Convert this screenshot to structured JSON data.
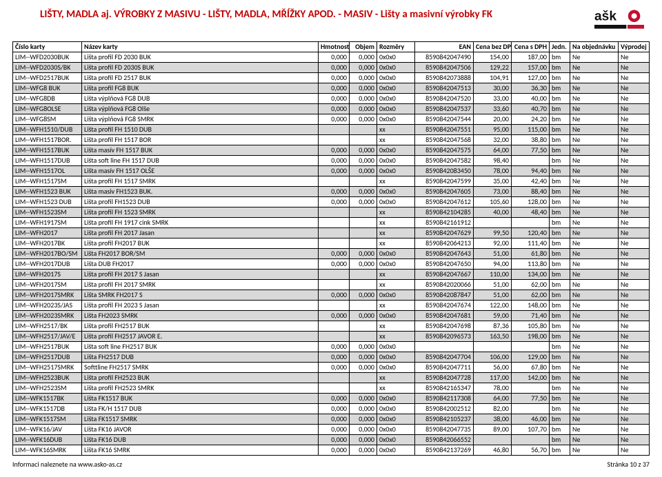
{
  "title": "LIŠTY, MADLA aj. VÝROBKY Z MASIVU - LIŠTY, MADLA, MŘÍŽKY APOD. - MASIV - Lišty a masivní výrobky FK",
  "logo": {
    "text_top": "aško",
    "accent": "#c4112f",
    "black": "#111"
  },
  "columns": [
    "Číslo karty",
    "Název karty",
    "Hmotnost",
    "Objem",
    "Rozměry",
    "EAN",
    "Cena bez DPH",
    "Cena s DPH",
    "Jedn.",
    "Na objednávku",
    "Výprodej"
  ],
  "footer_left": "Informaci naleznete na www.asko-as.cz",
  "footer_right": "Stránka 10 z 37",
  "rows": [
    {
      "g": 0,
      "c": "LIM--WFD2030BUK",
      "n": "Lišta profil FD 2030 BUK",
      "h": "0,000",
      "o": "0,000",
      "r": "0x0x0",
      "e": "8590842047490",
      "b": "154,00",
      "s": "187,00",
      "u": "bm",
      "obj": "Ne",
      "v": "Ne"
    },
    {
      "g": 1,
      "c": "LIM--WFD2030S/BK",
      "n": "Lišta profil FD 2030S BUK",
      "h": "0,000",
      "o": "0,000",
      "r": "0x0x0",
      "e": "8590842047506",
      "b": "129,22",
      "s": "157,00",
      "u": "bm",
      "obj": "Ne",
      "v": "Ne"
    },
    {
      "g": 0,
      "c": "LIM--WFD2517BUK",
      "n": "Lišta profil FD 2517 BUK",
      "h": "0,000",
      "o": "0,000",
      "r": "0x0x0",
      "e": "8590842073888",
      "b": "104,91",
      "s": "127,00",
      "u": "bm",
      "obj": "Ne",
      "v": "Ne"
    },
    {
      "g": 1,
      "c": "LIM--WFG8 BUK",
      "n": "Lišta profil FG8 BUK",
      "h": "0,000",
      "o": "0,000",
      "r": "0x0x0",
      "e": "8590842047513",
      "b": "30,00",
      "s": "36,30",
      "u": "bm",
      "obj": "Ne",
      "v": "Ne"
    },
    {
      "g": 0,
      "c": "LIM--WFG8DB",
      "n": "Lišta výplňová FG8 DUB",
      "h": "0,000",
      "o": "0,000",
      "r": "0x0x0",
      "e": "8590842047520",
      "b": "33,00",
      "s": "40,00",
      "u": "bm",
      "obj": "Ne",
      "v": "Ne"
    },
    {
      "g": 1,
      "c": "LIM--WFG8OLSE",
      "n": "Lišta výplňová FG8 Olše",
      "h": "0,000",
      "o": "0,000",
      "r": "0x0x0",
      "e": "8590842047537",
      "b": "33,60",
      "s": "40,70",
      "u": "bm",
      "obj": "Ne",
      "v": "Ne"
    },
    {
      "g": 0,
      "c": "LIM--WFG8SM",
      "n": "Lišta výplňová FG8 SMRK",
      "h": "0,000",
      "o": "0,000",
      "r": "0x0x0",
      "e": "8590842047544",
      "b": "20,00",
      "s": "24,20",
      "u": "bm",
      "obj": "Ne",
      "v": "Ne"
    },
    {
      "g": 1,
      "c": "LIM--WFH1510/DUB",
      "n": "Lišta profil FH 1510 DUB",
      "h": "",
      "o": "",
      "r": "xx",
      "e": "8590842047551",
      "b": "95,00",
      "s": "115,00",
      "u": "bm",
      "obj": "Ne",
      "v": "Ne"
    },
    {
      "g": 0,
      "c": "LIM--WFH1517BOR.",
      "n": "Lišta profil FH 1517 BOR",
      "h": "",
      "o": "",
      "r": "xx",
      "e": "8590842047568",
      "b": "32,00",
      "s": "38,80",
      "u": "bm",
      "obj": "Ne",
      "v": "Ne"
    },
    {
      "g": 1,
      "c": "LIM--WFH1517BUK",
      "n": "Lišta masív FH 1517 BUK",
      "h": "0,000",
      "o": "0,000",
      "r": "0x0x0",
      "e": "8590842047575",
      "b": "64,00",
      "s": "77,50",
      "u": "bm",
      "obj": "Ne",
      "v": "Ne"
    },
    {
      "g": 0,
      "c": "LIM--WFH1517DUB",
      "n": "Lišta soft line FH 1517 DUB",
      "h": "0,000",
      "o": "0,000",
      "r": "0x0x0",
      "e": "8590842047582",
      "b": "98,40",
      "s": "",
      "u": "bm",
      "obj": "Ne",
      "v": "Ne"
    },
    {
      "g": 1,
      "c": "LIM--WFH1517OL",
      "n": "Lišta masív FH 1517 OLŠE",
      "h": "0,000",
      "o": "0,000",
      "r": "0x0x0",
      "e": "8590842083450",
      "b": "78,00",
      "s": "94,40",
      "u": "bm",
      "obj": "Ne",
      "v": "Ne"
    },
    {
      "g": 0,
      "c": "LIM--WFH1517SM",
      "n": "Lišta profil FH 1517 SMRK",
      "h": "",
      "o": "",
      "r": "xx",
      "e": "8590842047599",
      "b": "35,00",
      "s": "42,40",
      "u": "bm",
      "obj": "Ne",
      "v": "Ne"
    },
    {
      "g": 1,
      "c": "LIM--WFH1523 BUK",
      "n": "Lišta masiv FH1523 BUK.",
      "h": "0,000",
      "o": "0,000",
      "r": "0x0x0",
      "e": "8590842047605",
      "b": "73,00",
      "s": "88,40",
      "u": "bm",
      "obj": "Ne",
      "v": "Ne"
    },
    {
      "g": 0,
      "c": "LIM--WFH1523 DUB",
      "n": "Lišta profil FH1523 DUB",
      "h": "0,000",
      "o": "0,000",
      "r": "0x0x0",
      "e": "8590842047612",
      "b": "105,60",
      "s": "128,00",
      "u": "bm",
      "obj": "Ne",
      "v": "Ne"
    },
    {
      "g": 1,
      "c": "LIM--WFH1523SM",
      "n": "Lišta profil FH 1523 SMRK",
      "h": "",
      "o": "",
      "r": "xx",
      "e": "8590842104285",
      "b": "40,00",
      "s": "48,40",
      "u": "bm",
      "obj": "Ne",
      "v": "Ne"
    },
    {
      "g": 0,
      "c": "LIM--WFH1917SM",
      "n": "Lišta profil FH 1917 cink SMRK",
      "h": "",
      "o": "",
      "r": "xx",
      "e": "8590842161912",
      "b": "",
      "s": "",
      "u": "bm",
      "obj": "Ne",
      "v": "Ne"
    },
    {
      "g": 1,
      "c": "LIM--WFH2017",
      "n": "Lišta profil FH 2017 Jasan",
      "h": "",
      "o": "",
      "r": "xx",
      "e": "8590842047629",
      "b": "99,50",
      "s": "120,40",
      "u": "bm",
      "obj": "Ne",
      "v": "Ne"
    },
    {
      "g": 0,
      "c": "LIM--WFH2017BK",
      "n": "Lišta profil FH2017 BUK",
      "h": "",
      "o": "",
      "r": "xx",
      "e": "8590842064213",
      "b": "92,00",
      "s": "111,40",
      "u": "bm",
      "obj": "Ne",
      "v": "Ne"
    },
    {
      "g": 1,
      "c": "LIM--WFH2017BO/SM",
      "n": "Lišta FH2017 BOR/SM",
      "h": "0,000",
      "o": "0,000",
      "r": "0x0x0",
      "e": "8590842047643",
      "b": "51,00",
      "s": "61,80",
      "u": "bm",
      "obj": "Ne",
      "v": "Ne"
    },
    {
      "g": 0,
      "c": "LIM--WFH2017DUB",
      "n": "Lišta DUB FH2017",
      "h": "0,000",
      "o": "0,000",
      "r": "0x0x0",
      "e": "8590842047650",
      "b": "94,00",
      "s": "113,80",
      "u": "bm",
      "obj": "Ne",
      "v": "Ne"
    },
    {
      "g": 1,
      "c": "LIM--WFH2017S",
      "n": "Lišta profil FH 2017 S Jasan",
      "h": "",
      "o": "",
      "r": "xx",
      "e": "8590842047667",
      "b": "110,00",
      "s": "134,00",
      "u": "bm",
      "obj": "Ne",
      "v": "Ne"
    },
    {
      "g": 0,
      "c": "LIM--WFH2017SM",
      "n": "Lišta profil FH 2017 SMRK",
      "h": "",
      "o": "",
      "r": "xx",
      "e": "8590842020066",
      "b": "51,00",
      "s": "62,00",
      "u": "bm",
      "obj": "Ne",
      "v": "Ne"
    },
    {
      "g": 1,
      "c": "LIM--WFH2017SMRK",
      "n": "Lišta SMRK FH2017 S",
      "h": "0,000",
      "o": "0,000",
      "r": "0x0x0",
      "e": "8590842087847",
      "b": "51,00",
      "s": "62,00",
      "u": "bm",
      "obj": "Ne",
      "v": "Ne"
    },
    {
      "g": 0,
      "c": "LIM--WFH2023S/JAS",
      "n": "Lišta profil FH 2023 S Jasan",
      "h": "",
      "o": "",
      "r": "xx",
      "e": "8590842047674",
      "b": "122,00",
      "s": "148,00",
      "u": "bm",
      "obj": "Ne",
      "v": "Ne"
    },
    {
      "g": 1,
      "c": "LIM--WFH2023SMRK",
      "n": "Lišta FH2023 SMRK",
      "h": "0,000",
      "o": "0,000",
      "r": "0x0x0",
      "e": "8590842047681",
      "b": "59,00",
      "s": "71,40",
      "u": "bm",
      "obj": "Ne",
      "v": "Ne"
    },
    {
      "g": 0,
      "c": "LIM--WFH2517/BK",
      "n": "Lišta profil FH2517 BUK",
      "h": "",
      "o": "",
      "r": "xx",
      "e": "8590842047698",
      "b": "87,36",
      "s": "105,80",
      "u": "bm",
      "obj": "Ne",
      "v": "Ne"
    },
    {
      "g": 1,
      "c": "LIM--WFH2517/JAV/E",
      "n": "Lišta profil FH2517 JAVOR E.",
      "h": "",
      "o": "",
      "r": "xx",
      "e": "8590842096573",
      "b": "163,50",
      "s": "198,00",
      "u": "bm",
      "obj": "Ne",
      "v": "Ne"
    },
    {
      "g": 0,
      "c": "LIM--WFH2517BUK",
      "n": "Lišta soft line  FH2517 BUK",
      "h": "0,000",
      "o": "0,000",
      "r": "0x0x0",
      "e": "",
      "b": "",
      "s": "",
      "u": "bm",
      "obj": "Ne",
      "v": "Ne"
    },
    {
      "g": 1,
      "c": "LIM--WFH2517DUB",
      "n": "Lišta FH2517 DUB",
      "h": "0,000",
      "o": "0,000",
      "r": "0x0x0",
      "e": "8590842047704",
      "b": "106,00",
      "s": "129,00",
      "u": "bm",
      "obj": "Ne",
      "v": "Ne"
    },
    {
      "g": 0,
      "c": "LIM--WFH2517SMRK",
      "n": "Softtline FH2517 SMRK",
      "h": "0,000",
      "o": "0,000",
      "r": "0x0x0",
      "e": "8590842047711",
      "b": "56,00",
      "s": "67,80",
      "u": "bm",
      "obj": "Ne",
      "v": "Ne"
    },
    {
      "g": 1,
      "c": "LIM--WFH2523BUK",
      "n": "Lišta profil FH2523 BUK",
      "h": "",
      "o": "",
      "r": "xx",
      "e": "8590842047728",
      "b": "117,00",
      "s": "142,00",
      "u": "bm",
      "obj": "Ne",
      "v": "Ne"
    },
    {
      "g": 0,
      "c": "LIM--WFH2523SM",
      "n": "Lišta profil FH2523 SMRK",
      "h": "",
      "o": "",
      "r": "xx",
      "e": "8590842165347",
      "b": "78,00",
      "s": "",
      "u": "bm",
      "obj": "Ne",
      "v": "Ne"
    },
    {
      "g": 1,
      "c": "LIM--WFK1517BK",
      "n": "Lišta FK1517 BUK",
      "h": "0,000",
      "o": "0,000",
      "r": "0x0x0",
      "e": "8590842117308",
      "b": "64,00",
      "s": "77,50",
      "u": "bm",
      "obj": "Ne",
      "v": "Ne"
    },
    {
      "g": 0,
      "c": "LIM--WFK1517DB",
      "n": "Lišta FK/H 1517 DUB",
      "h": "0,000",
      "o": "0,000",
      "r": "0x0x0",
      "e": "8590842002512",
      "b": "82,00",
      "s": "",
      "u": "bm",
      "obj": "Ne",
      "v": "Ne"
    },
    {
      "g": 1,
      "c": "LIM--WFK1517SM",
      "n": "Lišta FK1517 SMRK",
      "h": "0,000",
      "o": "0,000",
      "r": "0x0x0",
      "e": "8590842105237",
      "b": "38,00",
      "s": "46,00",
      "u": "bm",
      "obj": "Ne",
      "v": "Ne"
    },
    {
      "g": 0,
      "c": "LIM--WFK16/JAV",
      "n": "Lišta FK16 JAVOR",
      "h": "0,000",
      "o": "0,000",
      "r": "0x0x0",
      "e": "8590842047735",
      "b": "89,00",
      "s": "107,70",
      "u": "bm",
      "obj": "Ne",
      "v": "Ne"
    },
    {
      "g": 1,
      "c": "LIM--WFK16DUB",
      "n": "Lišta FK16 DUB",
      "h": "0,000",
      "o": "0,000",
      "r": "0x0x0",
      "e": "8590842066552",
      "b": "",
      "s": "",
      "u": "bm",
      "obj": "Ne",
      "v": "Ne"
    },
    {
      "g": 0,
      "c": "LIM--WFK16SMRK",
      "n": "Lišta FK16 SMRK",
      "h": "0,000",
      "o": "0,000",
      "r": "0x0x0",
      "e": "8590842137269",
      "b": "46,80",
      "s": "56,70",
      "u": "bm",
      "obj": "Ne",
      "v": "Ne"
    }
  ]
}
